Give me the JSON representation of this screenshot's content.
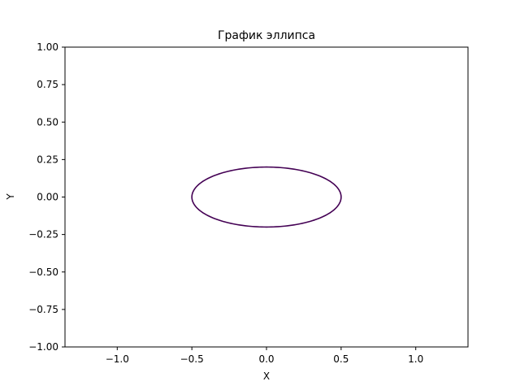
{
  "chart_data": {
    "type": "line",
    "title": "График эллипса",
    "xlabel": "X",
    "ylabel": "Y",
    "xlim": [
      -1.35,
      1.35
    ],
    "ylim": [
      -1.0,
      1.0
    ],
    "xticks": [
      -1.0,
      -0.5,
      0.0,
      0.5,
      1.0
    ],
    "xtick_labels": [
      "−1.0",
      "−0.5",
      "0.0",
      "0.5",
      "1.0"
    ],
    "yticks": [
      1.0,
      0.75,
      0.5,
      0.25,
      0.0,
      -0.25,
      -0.5,
      -0.75,
      -1.0
    ],
    "ytick_labels": [
      "1.00",
      "0.75",
      "0.50",
      "0.25",
      "0.00",
      "−0.25",
      "−0.50",
      "−0.75",
      "−1.00"
    ],
    "grid": false,
    "series": [
      {
        "shape": "ellipse",
        "center": [
          0.0,
          0.0
        ],
        "semi_axis_x": 0.5,
        "semi_axis_y": 0.2,
        "color": "#440154"
      }
    ]
  }
}
